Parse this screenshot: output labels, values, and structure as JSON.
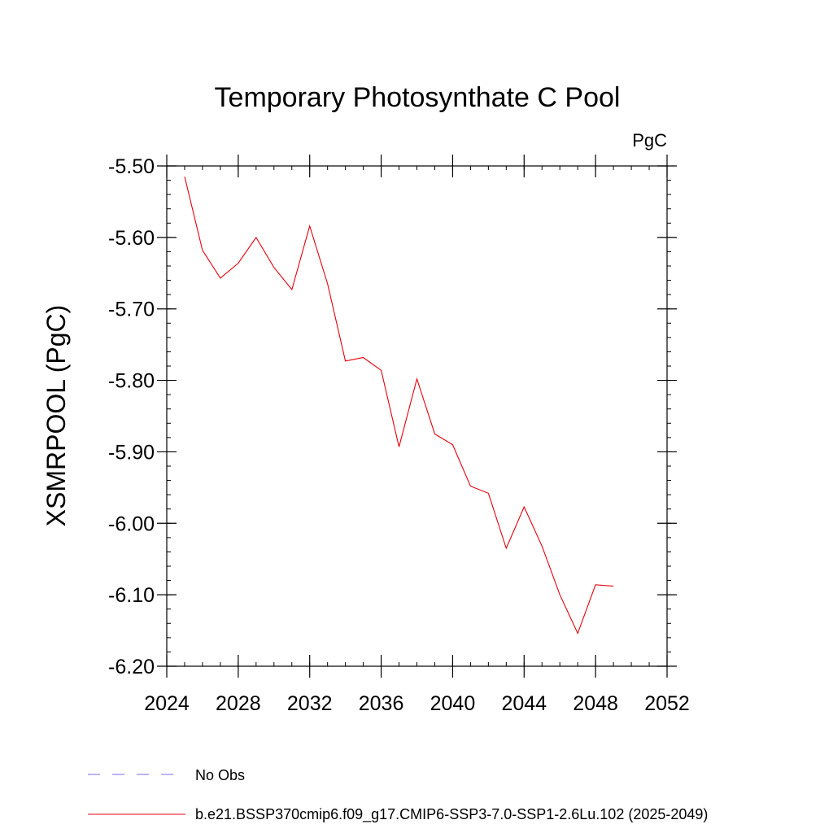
{
  "chart_data": {
    "type": "line",
    "title": "Temporary Photosynthate C Pool",
    "units_label": "PgC",
    "ylabel": "XSMRPOOL  (PgC)",
    "xlabel": "",
    "xlim": [
      2024,
      2052
    ],
    "ylim": [
      -6.2,
      -5.5
    ],
    "x_ticks": [
      2024,
      2028,
      2032,
      2036,
      2040,
      2044,
      2048,
      2052
    ],
    "x_tick_labels": [
      "2024",
      "2028",
      "2032",
      "2036",
      "2040",
      "2044",
      "2048",
      "2052"
    ],
    "y_ticks": [
      -5.5,
      -5.6,
      -5.7,
      -5.8,
      -5.9,
      -6.0,
      -6.1,
      -6.2
    ],
    "y_tick_labels": [
      "-5.50",
      "-5.60",
      "-5.70",
      "-5.80",
      "-5.90",
      "-6.00",
      "-6.10",
      "-6.20"
    ],
    "grid": false,
    "legend_position": "bottom",
    "series": [
      {
        "name": "b.e21.BSSP370cmip6.f09_g17.CMIP6-SSP3-7.0-SSP1-2.6Lu.102 (2025-2049)",
        "color": "#e8000b",
        "style": "solid",
        "x": [
          2025,
          2026,
          2027,
          2028,
          2029,
          2030,
          2031,
          2032,
          2033,
          2034,
          2035,
          2036,
          2037,
          2038,
          2039,
          2040,
          2041,
          2042,
          2043,
          2044,
          2045,
          2046,
          2047,
          2048,
          2049
        ],
        "y": [
          -5.515,
          -5.618,
          -5.657,
          -5.636,
          -5.6,
          -5.642,
          -5.673,
          -5.584,
          -5.665,
          -5.773,
          -5.768,
          -5.786,
          -5.893,
          -5.798,
          -5.875,
          -5.89,
          -5.948,
          -5.958,
          -6.035,
          -5.977,
          -6.032,
          -6.1,
          -6.154,
          -6.086,
          -6.088
        ]
      }
    ],
    "legend": [
      {
        "label": "No Obs",
        "color": "#7b68ee",
        "style": "dashed"
      },
      {
        "label": "b.e21.BSSP370cmip6.f09_g17.CMIP6-SSP3-7.0-SSP1-2.6Lu.102 (2025-2049)",
        "color": "#e8000b",
        "style": "solid"
      }
    ]
  }
}
